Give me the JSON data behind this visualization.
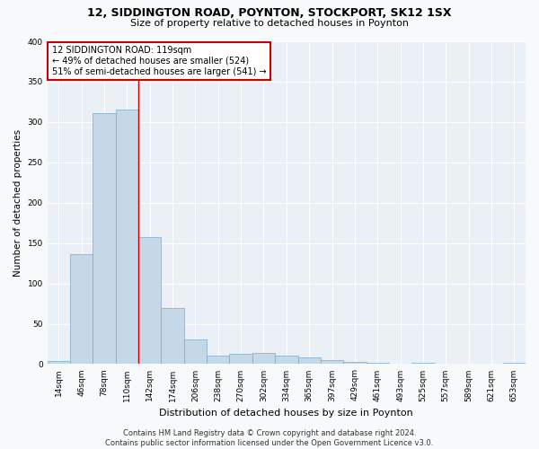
{
  "title": "12, SIDDINGTON ROAD, POYNTON, STOCKPORT, SK12 1SX",
  "subtitle": "Size of property relative to detached houses in Poynton",
  "xlabel": "Distribution of detached houses by size in Poynton",
  "ylabel": "Number of detached properties",
  "categories": [
    "14sqm",
    "46sqm",
    "78sqm",
    "110sqm",
    "142sqm",
    "174sqm",
    "206sqm",
    "238sqm",
    "270sqm",
    "302sqm",
    "334sqm",
    "365sqm",
    "397sqm",
    "429sqm",
    "461sqm",
    "493sqm",
    "525sqm",
    "557sqm",
    "589sqm",
    "621sqm",
    "653sqm"
  ],
  "values": [
    4,
    136,
    311,
    315,
    157,
    70,
    31,
    10,
    13,
    14,
    10,
    8,
    5,
    3,
    2,
    0,
    2,
    0,
    0,
    0,
    2
  ],
  "bar_color": "#c5d8e8",
  "bar_edgecolor": "#7aaac8",
  "annotation_line1": "12 SIDDINGTON ROAD: 119sqm",
  "annotation_line2": "← 49% of detached houses are smaller (524)",
  "annotation_line3": "51% of semi-detached houses are larger (541) →",
  "annotation_box_color": "#ffffff",
  "annotation_box_edgecolor": "#cc0000",
  "vline_x": 3.5,
  "vline_color": "#cc0000",
  "plot_bg_color": "#eaf0f6",
  "fig_bg_color": "#f8f9fa",
  "grid_color": "#ffffff",
  "footer": "Contains HM Land Registry data © Crown copyright and database right 2024.\nContains public sector information licensed under the Open Government Licence v3.0.",
  "ylim": [
    0,
    400
  ],
  "yticks": [
    0,
    50,
    100,
    150,
    200,
    250,
    300,
    350,
    400
  ],
  "title_fontsize": 9,
  "subtitle_fontsize": 8,
  "tick_fontsize": 6.5,
  "ylabel_fontsize": 7.5,
  "xlabel_fontsize": 8,
  "annotation_fontsize": 7,
  "footer_fontsize": 6
}
